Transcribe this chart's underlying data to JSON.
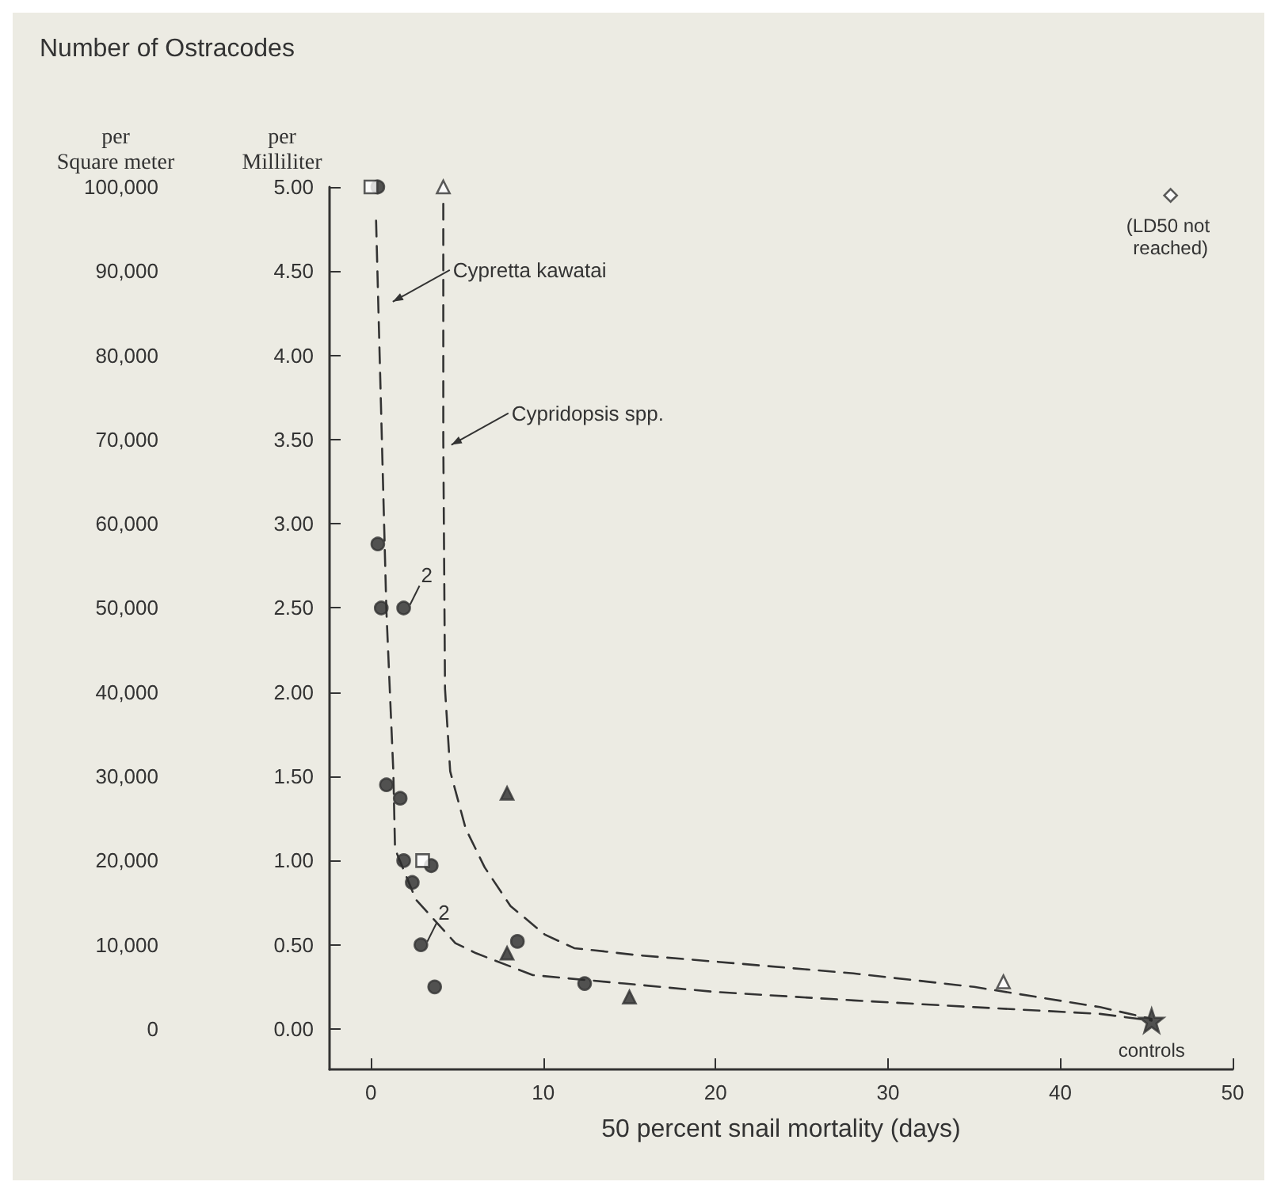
{
  "chart_data": {
    "type": "scatter",
    "title": "Number of Ostracodes",
    "xlabel": "50 percent snail mortality (days)",
    "ylabel": "per Milliliter",
    "y2label": "per Square meter",
    "xlim": [
      -2.4,
      50
    ],
    "xticks": [
      0,
      10,
      20,
      30,
      40,
      50
    ],
    "ylim": [
      -0.24,
      5.0
    ],
    "yticks": [
      {
        "value": 0,
        "label": "0.00"
      },
      {
        "value": 0.5,
        "label": "0.50"
      },
      {
        "value": 1,
        "label": "1.00"
      },
      {
        "value": 1.5,
        "label": "1.50"
      },
      {
        "value": 2,
        "label": "2.00"
      },
      {
        "value": 2.5,
        "label": "2.50"
      },
      {
        "value": 3,
        "label": "3.00"
      },
      {
        "value": 3.5,
        "label": "3.50"
      },
      {
        "value": 4,
        "label": "4.00"
      },
      {
        "value": 4.5,
        "label": "4.50"
      },
      {
        "value": 5,
        "label": "5.00"
      }
    ],
    "y2lim": [
      -4800,
      100000
    ],
    "y2ticks": [
      0,
      {
        "value": 10000,
        "label": "10,000"
      },
      {
        "value": 20000,
        "label": "20,000"
      },
      {
        "value": 30000,
        "label": "30,000"
      },
      {
        "value": 40000,
        "label": "40,000"
      },
      {
        "value": 50000,
        "label": "50,000"
      },
      {
        "value": 60000,
        "label": "60,000"
      },
      {
        "value": 70000,
        "label": "70,000"
      },
      {
        "value": 80000,
        "label": "80,000"
      },
      {
        "value": 90000,
        "label": "90,000"
      },
      {
        "value": 100000,
        "label": "100,000"
      }
    ],
    "grid": false,
    "series": [
      {
        "type": "line",
        "marker": "none",
        "line_style": "dashed",
        "color": "#333333",
        "x": [
          0.3,
          0.9,
          1.3,
          1.4,
          2.6,
          4.9,
          6.1,
          9.4,
          14.7,
          20,
          28,
          35,
          42.3,
          45.3
        ],
        "values": [
          4.8,
          2.48,
          1.53,
          1.07,
          0.77,
          0.51,
          0.45,
          0.32,
          0.27,
          0.22,
          0.17,
          0.13,
          0.09,
          0.05
        ]
      },
      {
        "type": "line",
        "marker": "none",
        "line_style": "dashed",
        "color": "#333333",
        "x": [
          4.2,
          4.2,
          4.3,
          4.6,
          5.5,
          6.6,
          8.1,
          10.1,
          11.8,
          13.6,
          15.3,
          20,
          28,
          35,
          42.3,
          45.3
        ],
        "values": [
          4.9,
          3.5,
          2.02,
          1.53,
          1.19,
          0.96,
          0.73,
          0.56,
          0.48,
          0.46,
          0.44,
          0.4,
          0.33,
          0.25,
          0.13,
          0.06
        ]
      },
      {
        "marker": "circle",
        "color": "#2b2b2b",
        "x": [
          0.4,
          0.4,
          0.6,
          1.9,
          0.9,
          1.7,
          1.9,
          3.5,
          2.4,
          2.9,
          3.7,
          8.5,
          12.4
        ],
        "values": [
          5.0,
          2.88,
          2.5,
          2.5,
          1.45,
          1.37,
          1.0,
          0.97,
          0.87,
          0.5,
          0.25,
          0.52,
          0.27
        ]
      },
      {
        "marker": "square",
        "color": "#ffffff",
        "x": [
          0.0,
          3.0
        ],
        "values": [
          5.0,
          1.0
        ]
      },
      {
        "marker": "triangle",
        "color": "#2b2b2b",
        "x": [
          7.9,
          7.9,
          15.0
        ],
        "values": [
          1.4,
          0.45,
          0.19
        ]
      },
      {
        "marker": "triangle",
        "color": "#ffffff",
        "x": [
          4.2,
          36.7
        ],
        "values": [
          5.0,
          0.28
        ]
      },
      {
        "marker": "diamond",
        "color": "#ffffff",
        "x": [
          46.4
        ],
        "values": [
          4.95
        ]
      },
      {
        "marker": "star",
        "color": "#2b2b2b",
        "x": [
          45.3
        ],
        "values": [
          0.05
        ]
      }
    ],
    "annotations": [
      {
        "text": "Cypretta kawatai",
        "x": 0.9,
        "y": 4.3
      },
      {
        "text": "Cypridopsis spp.",
        "x": 4.3,
        "y": 3.45
      },
      {
        "text": "2",
        "x": 1.9,
        "y": 2.5
      },
      {
        "text": "2",
        "x": 2.9,
        "y": 0.5
      },
      {
        "text": "(LD50 not reached)",
        "x": 46.4,
        "y": 4.95
      },
      {
        "text": "controls",
        "x": 45.3,
        "y": 0.05
      }
    ]
  }
}
